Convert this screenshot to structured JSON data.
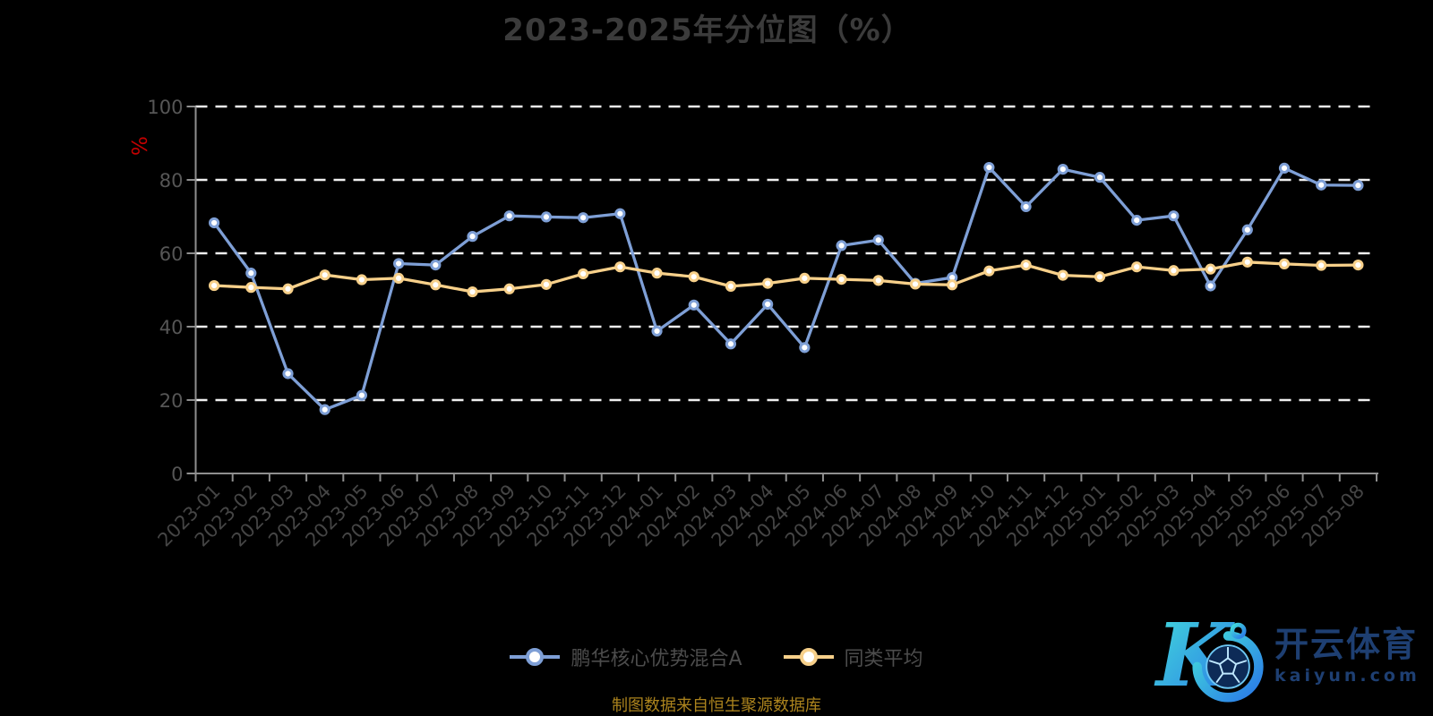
{
  "title": "2023-2025年分位图（%）",
  "source_note": "制图数据来自恒生聚源数据库",
  "y_axis_name": "%",
  "colors": {
    "fund_line": "#7e9fd6",
    "average_line": "#f7d08a",
    "grid": "#f0f0f0",
    "axis": "#8f8f8f",
    "y_label": "#565656",
    "x_label": "#454545",
    "title": "#3b3b3b",
    "legend_label": "#4c4c4c",
    "source_text": "#ab831d",
    "y_name": "#c40000",
    "logo_navy": "#1e3f72",
    "logo_teal": "#43ddda",
    "logo_blue": "#2a78e8"
  },
  "legend": {
    "items": [
      {
        "label": "鹏华核心优势混合A"
      },
      {
        "label": "同类平均"
      }
    ]
  },
  "watermark": {
    "brand": "开云体育",
    "domain": "kaiyun.com"
  },
  "chart_data": {
    "type": "line",
    "title": "2023-2025年分位图（%）",
    "xlabel": "",
    "ylabel": "%",
    "ylim": [
      0,
      100
    ],
    "ytick_step": 20,
    "grid": "horizontal dashed white lines",
    "legend_position": "bottom",
    "categories": [
      "2023-01",
      "2023-02",
      "2023-03",
      "2023-04",
      "2023-05",
      "2023-06",
      "2023-07",
      "2023-08",
      "2023-09",
      "2023-10",
      "2023-11",
      "2023-12",
      "2024-01",
      "2024-02",
      "2024-03",
      "2024-04",
      "2024-05",
      "2024-06",
      "2024-07",
      "2024-08",
      "2024-09",
      "2024-10",
      "2024-11",
      "2024-12",
      "2025-01",
      "2025-02",
      "2025-03",
      "2025-04",
      "2025-05",
      "2025-06",
      "2025-07",
      "2025-08"
    ],
    "series": [
      {
        "name": "鹏华核心优势混合A",
        "color": "#7e9fd6",
        "values": [
          68.3,
          54.6,
          27.2,
          17.4,
          21.3,
          57.2,
          56.8,
          64.6,
          70.2,
          69.9,
          69.7,
          70.8,
          38.8,
          45.9,
          35.3,
          46.1,
          34.3,
          62.1,
          63.6,
          51.8,
          53.4,
          83.4,
          72.7,
          82.9,
          80.7,
          69.0,
          70.2,
          51.1,
          66.4,
          83.2,
          78.6,
          78.5
        ]
      },
      {
        "name": "同类平均",
        "color": "#f7d08a",
        "values": [
          51.2,
          50.7,
          50.3,
          54.1,
          52.8,
          53.2,
          51.4,
          49.5,
          50.3,
          51.5,
          54.4,
          56.3,
          54.6,
          53.6,
          51.0,
          51.8,
          53.2,
          52.9,
          52.6,
          51.6,
          51.4,
          55.2,
          56.8,
          54.0,
          53.6,
          56.3,
          55.3,
          55.7,
          57.6,
          57.1,
          56.7,
          56.8
        ]
      }
    ]
  }
}
